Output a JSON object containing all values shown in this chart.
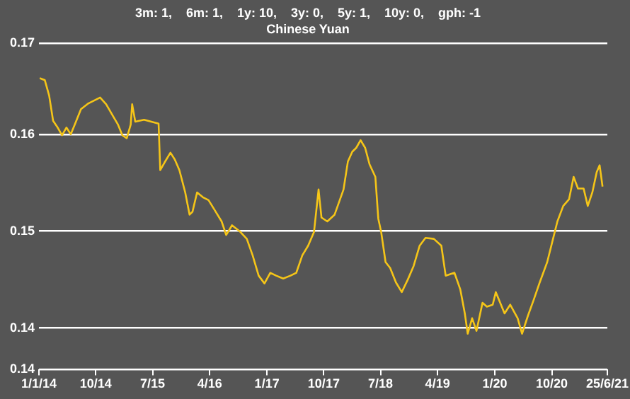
{
  "chart_data": {
    "type": "line",
    "title": "3m: 1,    6m: 1,    1y: 10,    3y: 0,    5y: 1,    10y: 0,    gph: -1",
    "subtitle": "Chinese Yuan",
    "x": [
      "2014-01-05",
      "2014-01-29",
      "2014-02-19",
      "2014-03-10",
      "2014-04-01",
      "2014-04-22",
      "2014-05-13",
      "2014-06-03",
      "2014-06-24",
      "2014-07-22",
      "2014-08-27",
      "2014-10-22",
      "2014-11-20",
      "2014-12-25",
      "2015-01-16",
      "2015-02-06",
      "2015-02-27",
      "2015-03-18",
      "2015-03-25",
      "2015-04-09",
      "2015-05-21",
      "2015-07-30",
      "2015-08-07",
      "2015-08-28",
      "2015-09-25",
      "2015-10-16",
      "2015-11-07",
      "2015-12-05",
      "2015-12-26",
      "2016-01-09",
      "2016-01-31",
      "2016-02-28",
      "2016-03-26",
      "2016-04-24",
      "2016-05-28",
      "2016-06-19",
      "2016-07-17",
      "2016-08-22",
      "2016-09-26",
      "2016-10-24",
      "2016-11-22",
      "2016-12-20",
      "2017-01-17",
      "2017-02-14",
      "2017-03-20",
      "2017-04-24",
      "2017-05-22",
      "2017-06-20",
      "2017-07-18",
      "2017-08-15",
      "2017-09-06",
      "2017-09-20",
      "2017-10-18",
      "2017-11-22",
      "2018-01-04",
      "2018-01-25",
      "2018-02-15",
      "2018-03-06",
      "2018-03-27",
      "2018-04-18",
      "2018-05-09",
      "2018-06-06",
      "2018-06-20",
      "2018-07-04",
      "2018-07-25",
      "2018-08-16",
      "2018-09-13",
      "2018-10-11",
      "2018-11-09",
      "2018-12-07",
      "2019-01-05",
      "2019-02-02",
      "2019-03-14",
      "2019-04-19",
      "2019-05-10",
      "2019-06-21",
      "2019-07-19",
      "2019-08-10",
      "2019-08-24",
      "2019-09-14",
      "2019-10-05",
      "2019-11-03",
      "2019-11-24",
      "2019-12-22",
      "2020-01-06",
      "2020-01-27",
      "2020-02-17",
      "2020-03-15",
      "2020-04-20",
      "2020-05-11",
      "2020-06-09",
      "2020-07-06",
      "2020-08-04",
      "2020-09-09",
      "2020-10-07",
      "2020-10-28",
      "2020-11-25",
      "2020-12-23",
      "2021-01-14",
      "2021-02-04",
      "2021-03-03",
      "2021-03-23",
      "2021-04-14",
      "2021-05-05",
      "2021-05-19",
      "2021-06-02"
    ],
    "series": [
      {
        "color": "#f5c518",
        "values": [
          0.1658,
          0.1656,
          0.164,
          0.1614,
          0.1607,
          0.1599,
          0.1607,
          0.16,
          0.1611,
          0.1626,
          0.1632,
          0.1638,
          0.1631,
          0.1618,
          0.161,
          0.1599,
          0.1596,
          0.161,
          0.1631,
          0.1613,
          0.1615,
          0.1611,
          0.1563,
          0.1571,
          0.1581,
          0.1574,
          0.1563,
          0.154,
          0.1517,
          0.152,
          0.154,
          0.1535,
          0.1532,
          0.1522,
          0.151,
          0.1496,
          0.1506,
          0.15,
          0.1492,
          0.1475,
          0.1454,
          0.1446,
          0.1457,
          0.1454,
          0.1451,
          0.1454,
          0.1457,
          0.1475,
          0.1485,
          0.1499,
          0.1543,
          0.1514,
          0.151,
          0.1517,
          0.1543,
          0.1572,
          0.1582,
          0.1586,
          0.1594,
          0.1586,
          0.1569,
          0.1556,
          0.1513,
          0.1499,
          0.1468,
          0.1462,
          0.1447,
          0.1437,
          0.145,
          0.1464,
          0.1485,
          0.1493,
          0.1492,
          0.1485,
          0.1454,
          0.1457,
          0.144,
          0.1415,
          0.1394,
          0.141,
          0.1397,
          0.1426,
          0.1422,
          0.1424,
          0.1437,
          0.1426,
          0.1415,
          0.1424,
          0.141,
          0.1394,
          0.1413,
          0.1429,
          0.1447,
          0.1468,
          0.1492,
          0.151,
          0.1526,
          0.1533,
          0.1556,
          0.1544,
          0.1544,
          0.1526,
          0.154,
          0.1561,
          0.1568,
          0.1546
        ]
      }
    ],
    "xlim": [
      "2014-01-01",
      "2021-06-25"
    ],
    "xticks": [
      {
        "value": "2014-01-01",
        "label": "1/1/14"
      },
      {
        "value": "2014-10-01",
        "label": "10/14"
      },
      {
        "value": "2015-07-01",
        "label": "7/15"
      },
      {
        "value": "2016-04-01",
        "label": "4/16"
      },
      {
        "value": "2017-01-01",
        "label": "1/17"
      },
      {
        "value": "2017-10-01",
        "label": "10/17"
      },
      {
        "value": "2018-07-01",
        "label": "7/18"
      },
      {
        "value": "2019-04-01",
        "label": "4/19"
      },
      {
        "value": "2020-01-01",
        "label": "1/20"
      },
      {
        "value": "2020-10-01",
        "label": "10/20"
      },
      {
        "value": "2021-06-25",
        "label": "25/6/21"
      }
    ],
    "ylim": [
      0.1357,
      0.1694
    ],
    "yticks": [
      {
        "value": 0.1357,
        "label": "0.14"
      },
      0.14,
      0.15,
      0.16,
      {
        "value": 0.1694,
        "label": "0.17"
      }
    ],
    "grid": "y",
    "legend": false,
    "marker": "none",
    "line_style": "solid"
  }
}
